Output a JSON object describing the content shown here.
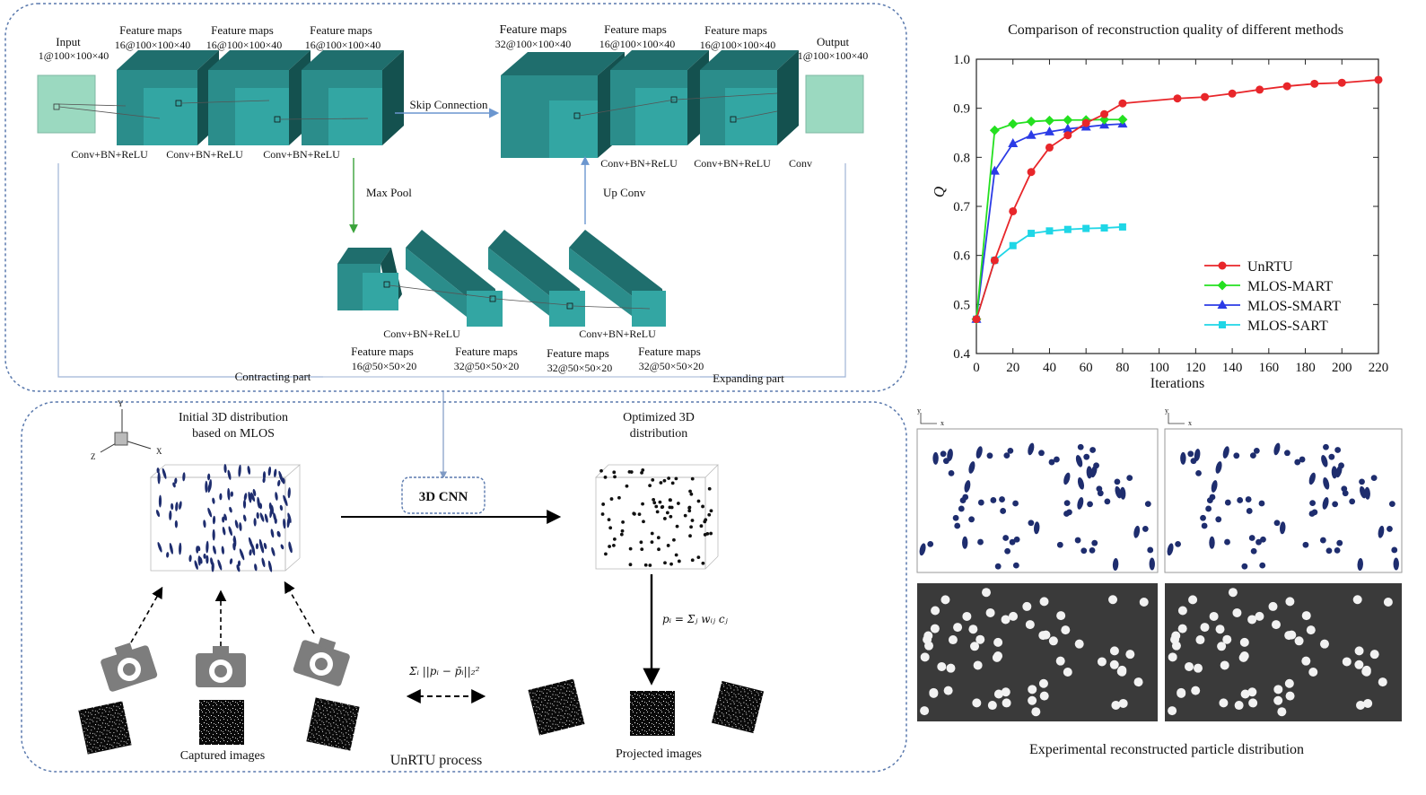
{
  "network": {
    "input": {
      "title": "Input",
      "dims": "1@100×100×40",
      "op": "Conv+BN+ReLU"
    },
    "enc1": {
      "title": "Feature maps",
      "dims": "16@100×100×40",
      "op": "Conv+BN+ReLU"
    },
    "enc2": {
      "title": "Feature maps",
      "dims": "16@100×100×40",
      "op": "Conv+BN+ReLU"
    },
    "enc3": {
      "title": "Feature maps",
      "dims": "16@100×100×40"
    },
    "dec1": {
      "title": "Feature maps",
      "dims": "32@100×100×40",
      "op": "Conv+BN+ReLU"
    },
    "dec2": {
      "title": "Feature maps",
      "dims": "16@100×100×40",
      "op": "Conv+BN+ReLU"
    },
    "dec3": {
      "title": "Feature maps",
      "dims": "16@100×100×40",
      "op": "Conv"
    },
    "output": {
      "title": "Output",
      "dims": "1@100×100×40"
    },
    "bot1": {
      "title": "Feature maps",
      "dims": "16@50×50×20",
      "op": "Conv+BN+ReLU"
    },
    "bot2": {
      "title": "Feature maps",
      "dims": "32@50×50×20",
      "op": "Conv+BN+ReLU"
    },
    "bot3": {
      "title": "Feature maps",
      "dims": "32@50×50×20"
    },
    "bot4": {
      "title": "Feature maps",
      "dims": "32@50×50×20"
    },
    "skip_label": "Skip Connection",
    "maxpool_label": "Max Pool",
    "upconv_label": "Up Conv",
    "contracting_label": "Contracting part",
    "expanding_label": "Expanding part"
  },
  "process": {
    "initial_label_1": "Initial 3D distribution",
    "initial_label_2": "based on MLOS",
    "optimized_label_1": "Optimized 3D",
    "optimized_label_2": "distribution",
    "cnn_label": "3D CNN",
    "captured_label": "Captured images",
    "projected_label": "Projected images",
    "process_label": "UnRTU process",
    "axis_y": "Y",
    "axis_x": "X",
    "axis_z": "Z",
    "proj_formula": "pᵢ = Σⱼ wᵢⱼ cⱼ",
    "loss_formula": "Σᵢ ||pᵢ − p̄ᵢ||₂²"
  },
  "particles": {
    "caption": "Experimental reconstructed particle distribution",
    "mini_axis_y": "y",
    "mini_axis_x": "x"
  },
  "colors": {
    "teal_front": "#33a6a3",
    "teal_top": "#1f6e6d",
    "teal_side": "#14514f",
    "light_green": "#9bd9c0",
    "panel_border": "#5a79ad",
    "unrtu": "#e8262a",
    "mart": "#24e020",
    "smart": "#2b3be6",
    "sart": "#1fd6e6",
    "particle": "#1e2d6e"
  },
  "chart_data": {
    "type": "line",
    "title": "Comparison of reconstruction quality of different methods",
    "xlabel": "Iterations",
    "ylabel": "Q",
    "xlim": [
      0,
      220
    ],
    "ylim": [
      0.4,
      1.0
    ],
    "xticks": [
      0,
      20,
      40,
      60,
      80,
      100,
      120,
      140,
      160,
      180,
      200,
      220
    ],
    "yticks": [
      0.4,
      0.5,
      0.6,
      0.7,
      0.8,
      0.9,
      1.0
    ],
    "legend_position": "bottom-right",
    "series": [
      {
        "name": "UnRTU",
        "color": "#e8262a",
        "marker": "circle",
        "x": [
          0,
          10,
          20,
          30,
          40,
          50,
          60,
          70,
          80,
          110,
          125,
          140,
          155,
          170,
          185,
          200,
          220
        ],
        "y": [
          0.47,
          0.59,
          0.69,
          0.77,
          0.82,
          0.845,
          0.87,
          0.888,
          0.91,
          0.92,
          0.923,
          0.93,
          0.938,
          0.945,
          0.95,
          0.952,
          0.958
        ]
      },
      {
        "name": "MLOS-MART",
        "color": "#24e020",
        "marker": "diamond",
        "x": [
          0,
          10,
          20,
          30,
          40,
          50,
          60,
          70,
          80
        ],
        "y": [
          0.47,
          0.855,
          0.868,
          0.873,
          0.875,
          0.876,
          0.876,
          0.877,
          0.877
        ]
      },
      {
        "name": "MLOS-SMART",
        "color": "#2b3be6",
        "marker": "triangle",
        "x": [
          0,
          10,
          20,
          30,
          40,
          50,
          60,
          70,
          80
        ],
        "y": [
          0.47,
          0.772,
          0.828,
          0.845,
          0.852,
          0.858,
          0.862,
          0.866,
          0.868
        ]
      },
      {
        "name": "MLOS-SART",
        "color": "#1fd6e6",
        "marker": "square",
        "x": [
          0,
          10,
          20,
          30,
          40,
          50,
          60,
          70,
          80
        ],
        "y": [
          0.47,
          0.59,
          0.62,
          0.645,
          0.65,
          0.653,
          0.655,
          0.656,
          0.658
        ]
      }
    ]
  }
}
